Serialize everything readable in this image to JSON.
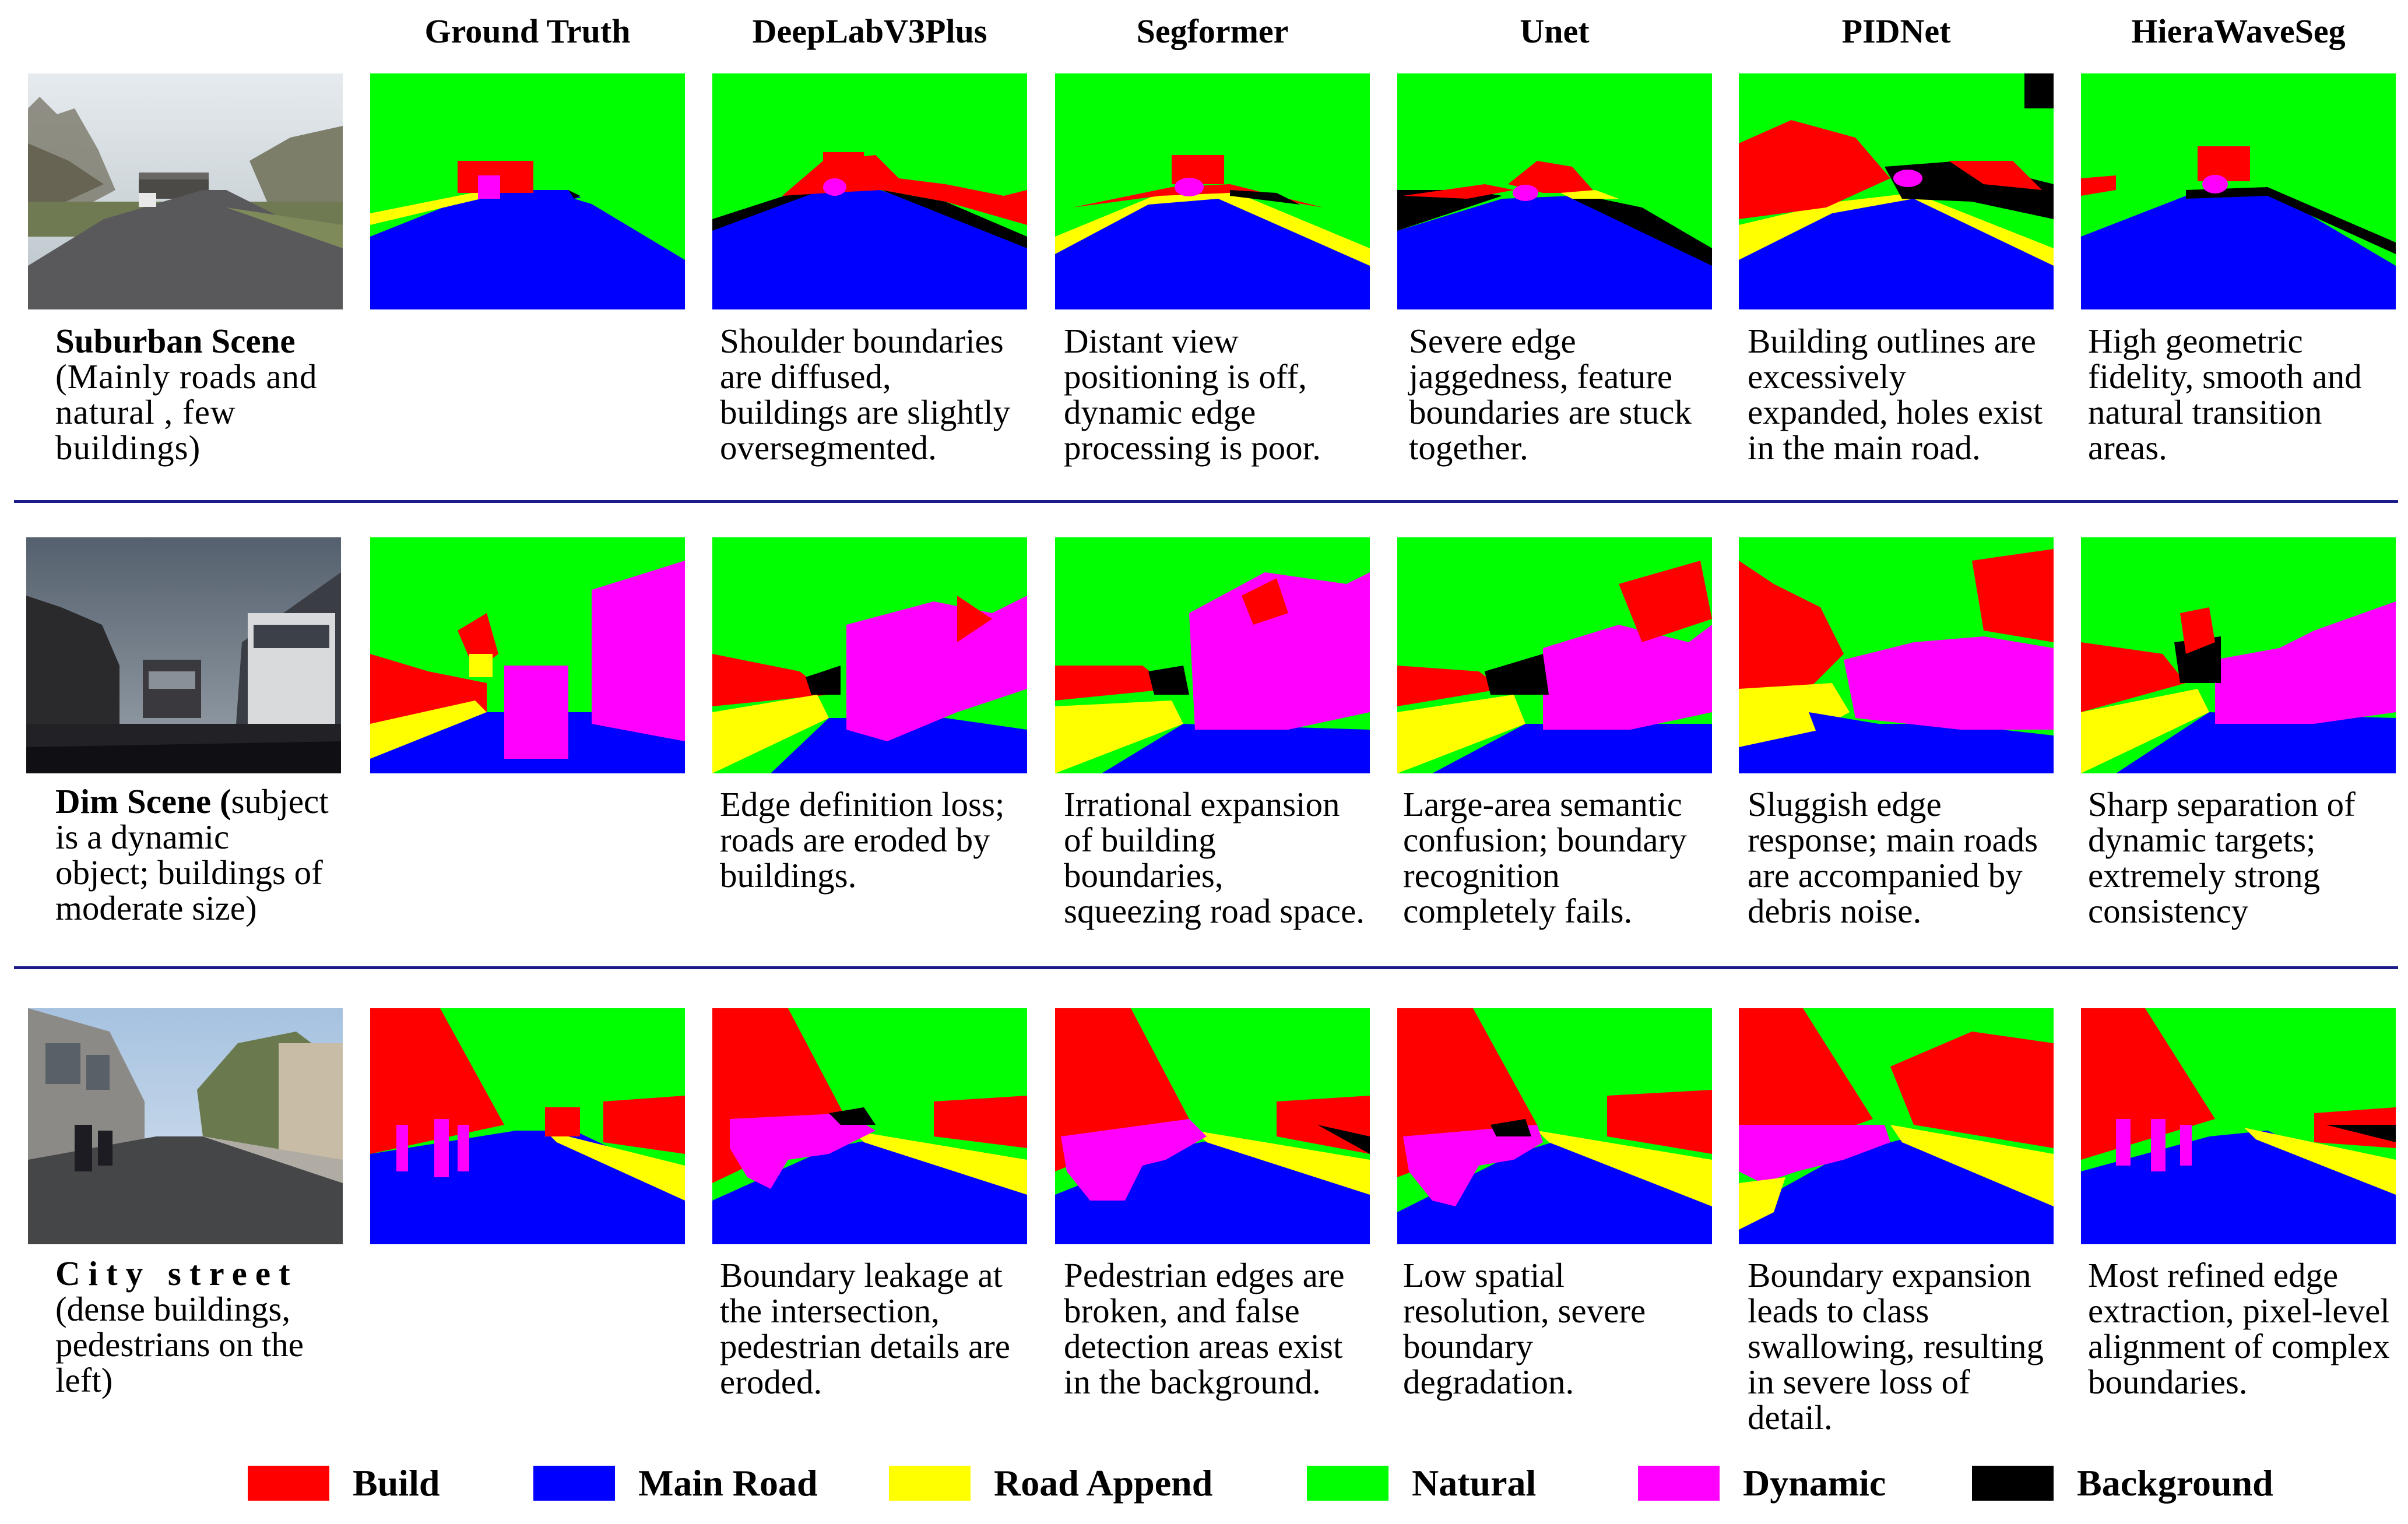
{
  "columns": [
    "Ground Truth",
    "DeepLabV3Plus",
    "Segformer",
    "Unet",
    "PIDNet",
    "HieraWaveSeg"
  ],
  "rows": [
    {
      "title": "Suburban Scene",
      "desc": "(Mainly roads and natural , few buildings)",
      "captions": [
        "",
        "Shoulder boundaries are diffused, buildings are slightly oversegmented.",
        "Distant view positioning is off, dynamic edge processing is poor.",
        "Severe edge jaggedness, feature boundaries are stuck together.",
        "Building outlines are excessively expanded, holes exist in the main road.",
        "High geometric fidelity, smooth and natural transition areas."
      ]
    },
    {
      "title": "Dim Scene (",
      "desc": "subject is a dynamic object; buildings of moderate size)",
      "captions": [
        "",
        "Edge definition loss; roads are eroded by buildings.",
        "Irrational expansion of building boundaries, squeezing road space.",
        "Large-area semantic confusion; boundary recognition completely fails.",
        "Sluggish edge response; main roads are accompanied by debris noise.",
        "Sharp separation of dynamic targets; extremely strong consistency"
      ]
    },
    {
      "title": "City street",
      "desc": "(dense buildings, pedestrians on the left)",
      "captions": [
        "",
        "Boundary leakage at the intersection, pedestrian details are eroded.",
        "Pedestrian edges are broken, and false detection areas exist in the background.",
        "Low spatial resolution, severe boundary degradation.",
        "Boundary expansion leads to class swallowing, resulting in severe loss of detail.",
        "Most refined edge extraction, pixel-level alignment of complex boundaries."
      ]
    }
  ],
  "legend": [
    {
      "label": "Build",
      "color": "#ff0000"
    },
    {
      "label": "Main Road",
      "color": "#0000ff"
    },
    {
      "label": "Road Append",
      "color": "#ffff00"
    },
    {
      "label": "Natural",
      "color": "#00ff00"
    },
    {
      "label": "Dynamic",
      "color": "#ff00ff"
    },
    {
      "label": "Background",
      "color": "#000000"
    }
  ]
}
